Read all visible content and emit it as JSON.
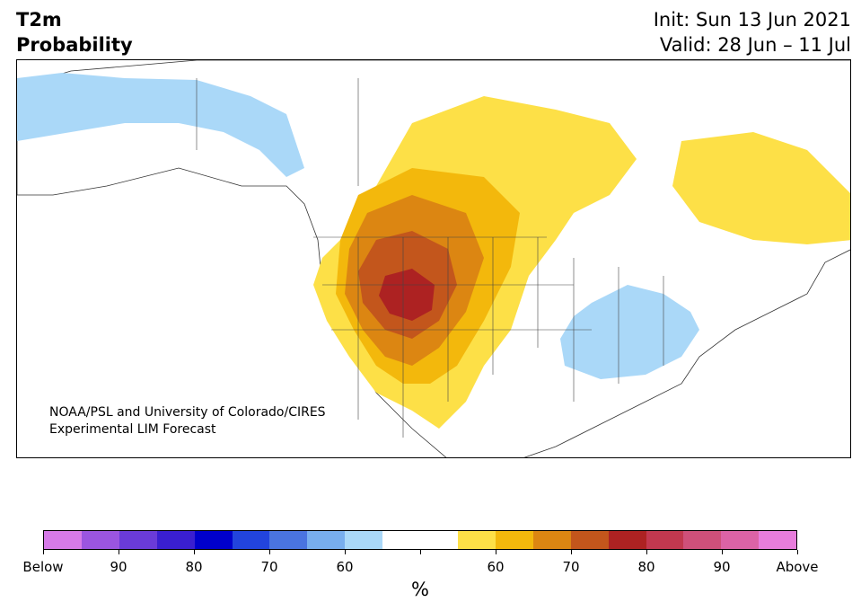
{
  "header": {
    "title_line1": "T2m",
    "title_line2": "Probability",
    "init": "Init: Sun 13 Jun 2021",
    "valid": "Valid: 28 Jun – 11 Jul"
  },
  "map": {
    "credit_line1": "NOAA/PSL and University of Colorado/CIRES",
    "credit_line2": "Experimental LIM Forecast"
  },
  "legend": {
    "unit": "%",
    "tick_labels": [
      "Below",
      "90",
      "80",
      "70",
      "60",
      "",
      "60",
      "70",
      "80",
      "90",
      "Above"
    ],
    "colors": [
      "#d67ae8",
      "#9b55e0",
      "#6a3bd8",
      "#3a1fd0",
      "#0000cc",
      "#2244dd",
      "#4a74e0",
      "#78aeee",
      "#aad8f8",
      "#ffffff",
      "#ffffff",
      "#fde047",
      "#f3b80c",
      "#dc8612",
      "#c3561c",
      "#ad2222",
      "#c2384f",
      "#cf507a",
      "#dc63a6",
      "#e87ddc"
    ]
  }
}
